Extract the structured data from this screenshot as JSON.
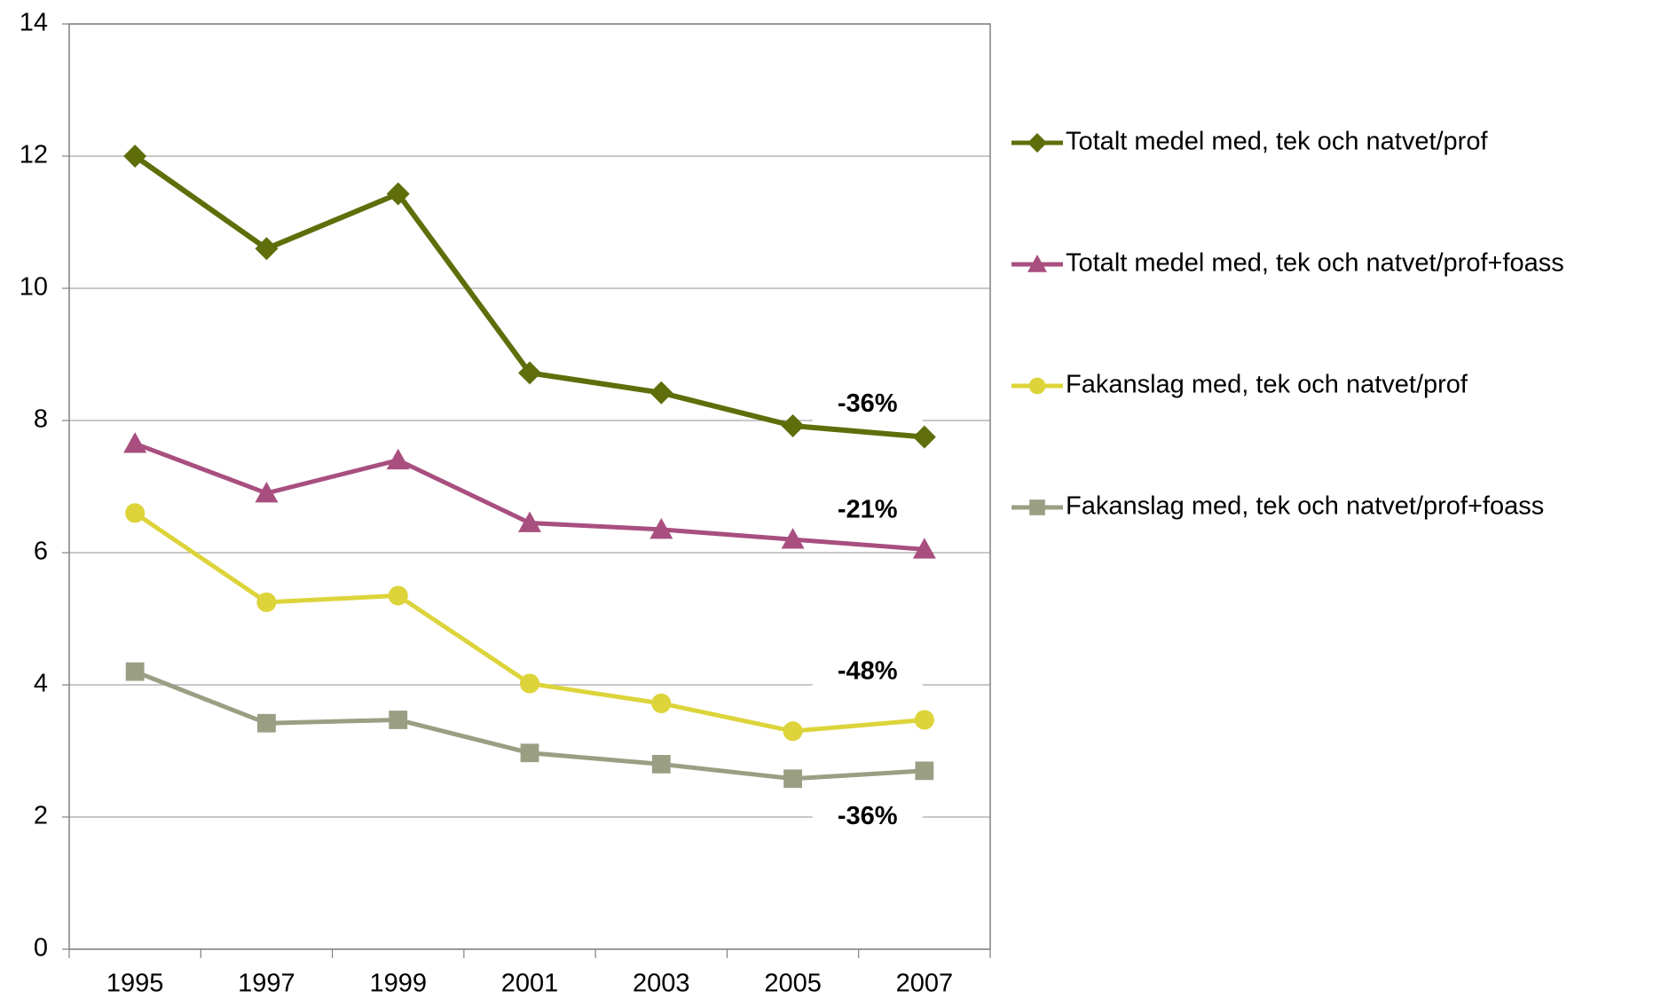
{
  "chart_data": {
    "type": "line",
    "categories": [
      "1995",
      "1997",
      "1999",
      "2001",
      "2003",
      "2005",
      "2007"
    ],
    "series": [
      {
        "name": "Totalt medel med, tek och natvet/prof",
        "color": "#5f6e0a",
        "marker": "diamond",
        "values": [
          12.0,
          10.6,
          11.43,
          8.72,
          8.42,
          7.92,
          7.75
        ]
      },
      {
        "name": "Totalt medel med, tek och natvet/prof+foass",
        "color": "#a84f7f",
        "marker": "triangle",
        "values": [
          7.65,
          6.9,
          7.4,
          6.45,
          6.35,
          6.2,
          6.05
        ]
      },
      {
        "name": "Fakanslag med, tek och natvet/prof",
        "color": "#dcd43a",
        "marker": "circle",
        "values": [
          6.6,
          5.25,
          5.35,
          4.02,
          3.72,
          3.3,
          3.47
        ]
      },
      {
        "name": "Fakanslag med, tek och natvet/prof+foass",
        "color": "#9a9f84",
        "marker": "square",
        "values": [
          4.2,
          3.42,
          3.47,
          2.97,
          2.8,
          2.58,
          2.7
        ]
      }
    ],
    "annotations": [
      "-36%",
      "-21%",
      "-48%",
      "-36%"
    ],
    "ylim": [
      0,
      14
    ],
    "yticks": [
      0,
      2,
      4,
      6,
      8,
      10,
      12,
      14
    ],
    "grid": true,
    "legend": "right"
  }
}
